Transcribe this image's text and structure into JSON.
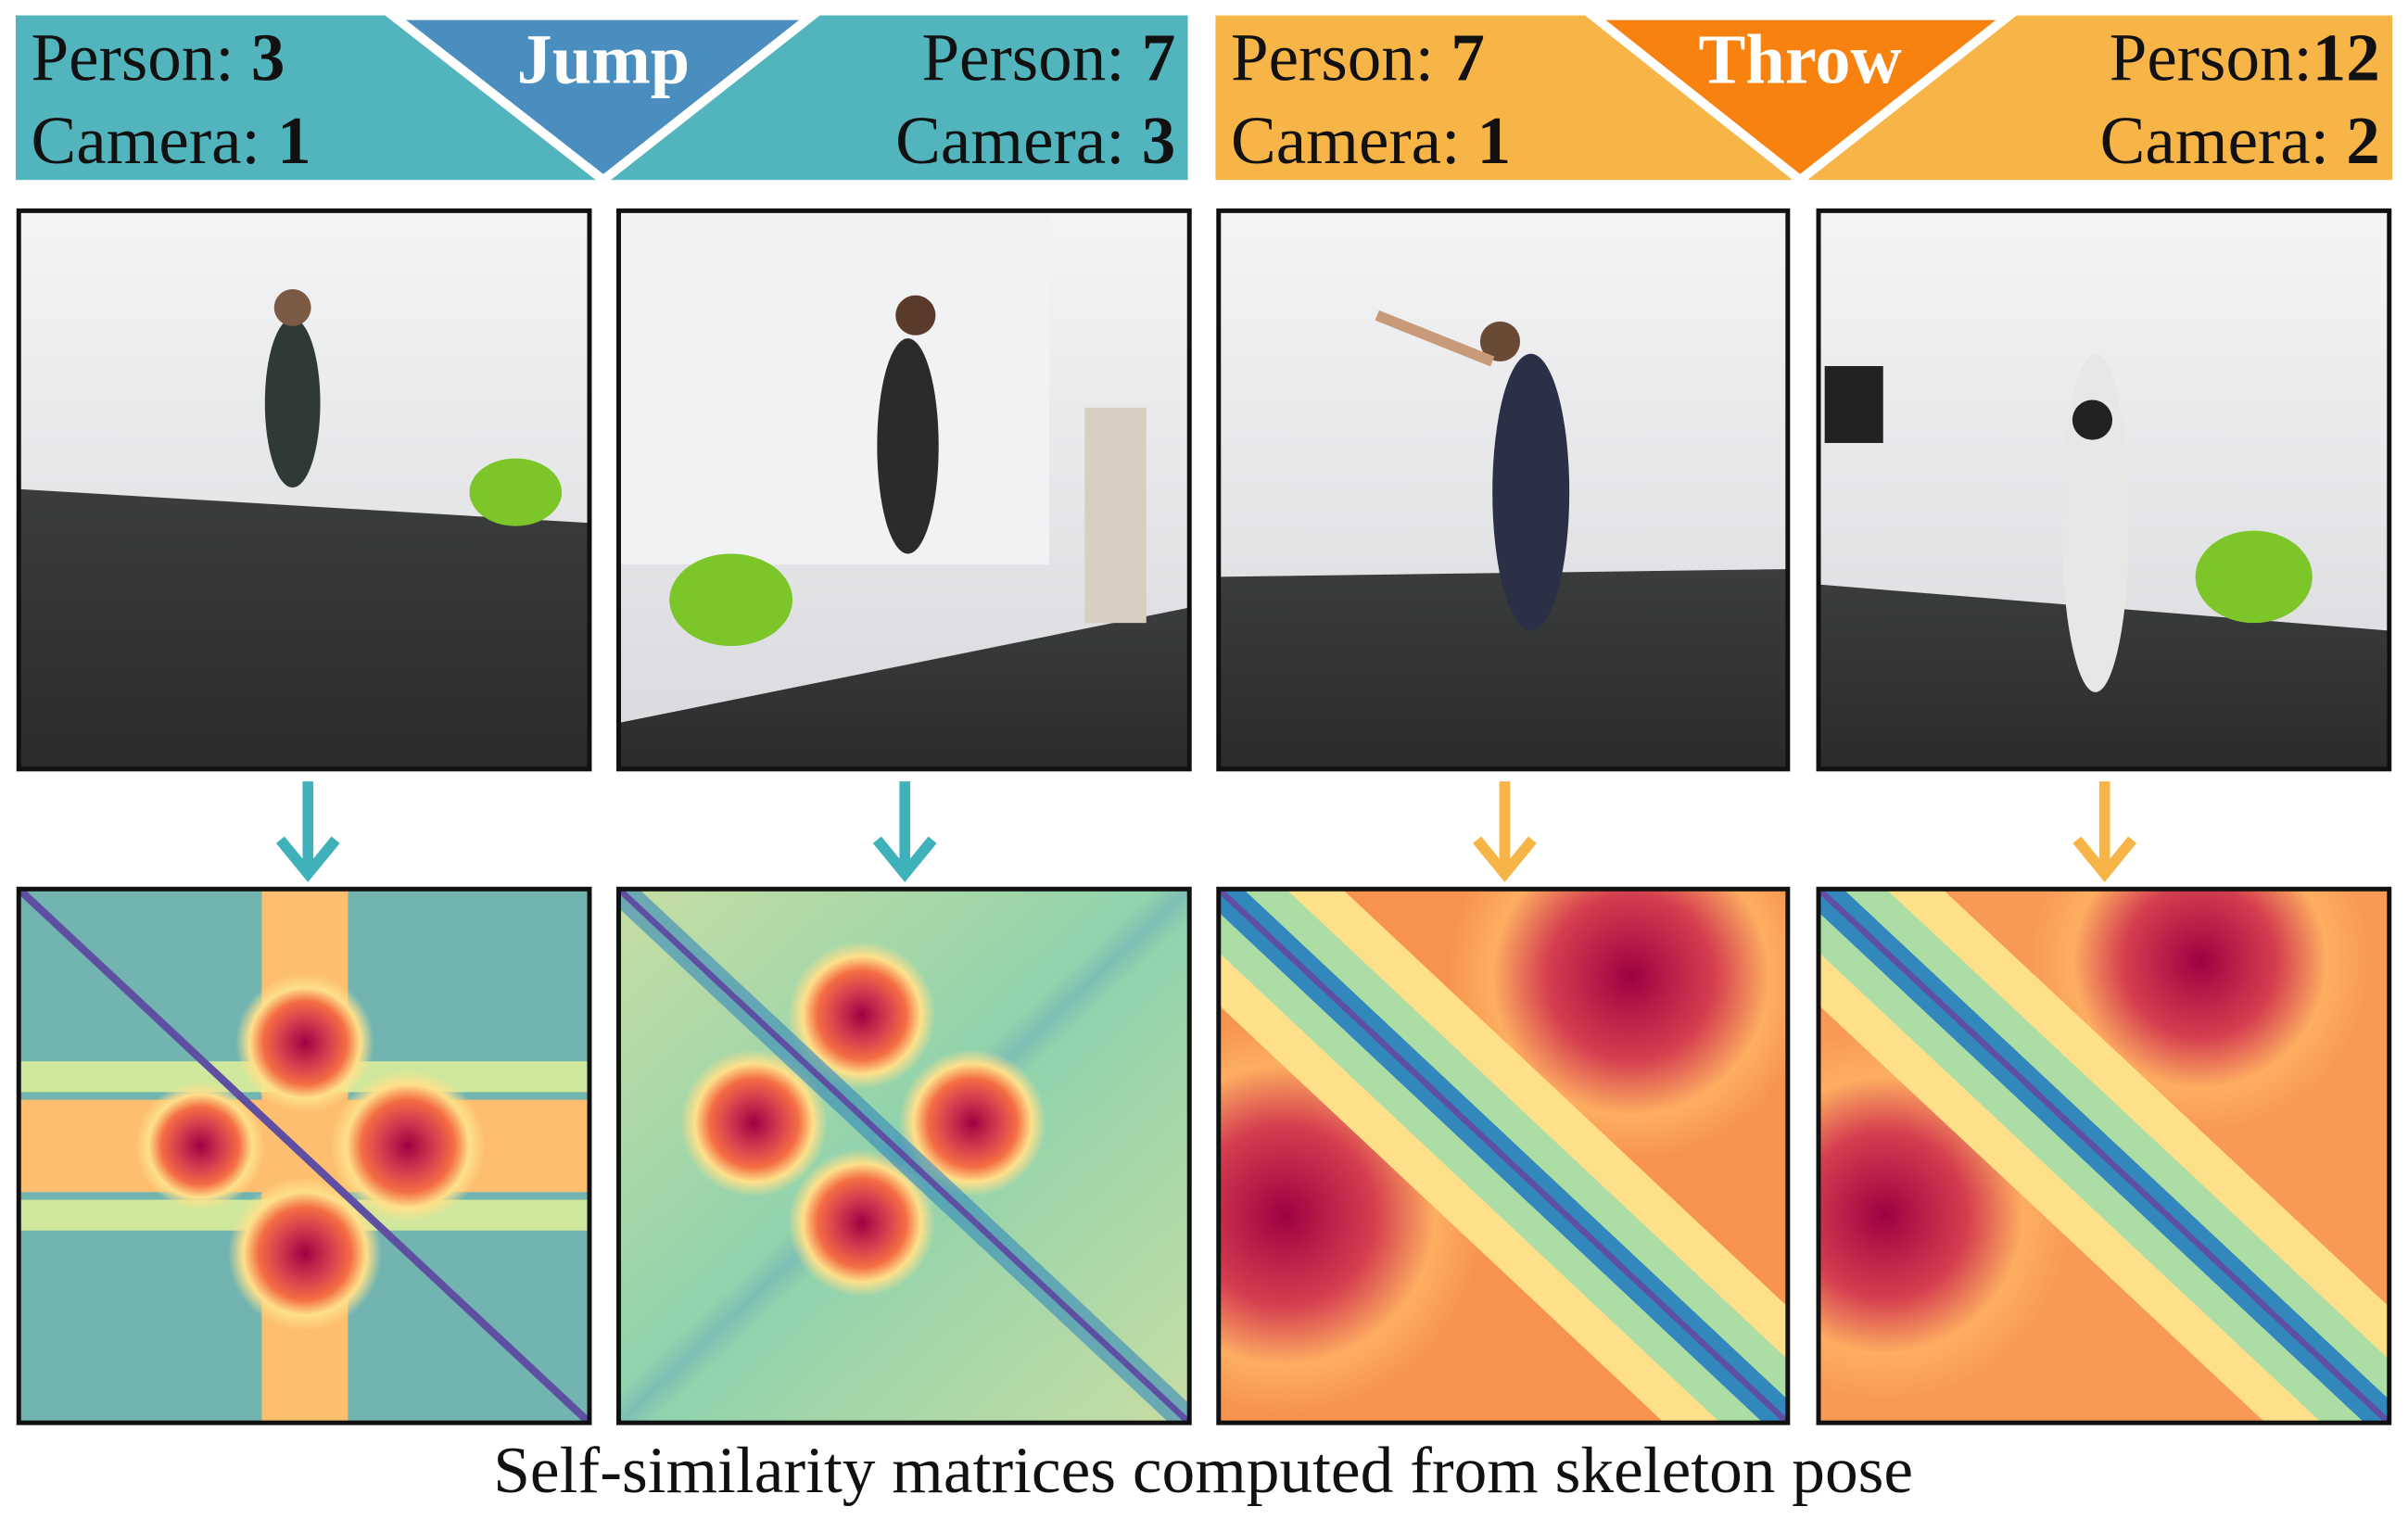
{
  "groups": [
    {
      "action": "Jump",
      "panels": [
        {
          "person_key": "Person:",
          "person": 3,
          "camera_key": "Camera:",
          "camera": 1
        },
        {
          "person_key": "Person:",
          "person": 7,
          "camera_key": "Camera:",
          "camera": 3
        }
      ]
    },
    {
      "action": "Throw",
      "panels": [
        {
          "person_key": "Person:",
          "person": 7,
          "camera_key": "Camera:",
          "camera": 1
        },
        {
          "person_key": "Person:",
          "person": 12,
          "camera_key": "Camera:",
          "camera": 2
        }
      ]
    }
  ],
  "caption": "Self-similarity matrices computed from skeleton pose"
}
